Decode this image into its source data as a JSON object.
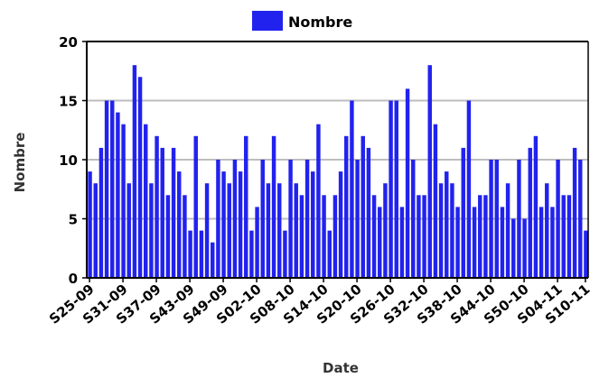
{
  "chart_data": {
    "type": "bar",
    "xlabel": "Date",
    "ylabel": "Nombre",
    "ylim": [
      0,
      20
    ],
    "yticks": [
      0,
      5,
      10,
      15,
      20
    ],
    "grid": true,
    "legend_position": "top-center",
    "series": [
      {
        "name": "Nombre",
        "color": "#2222ee",
        "values": [
          9,
          8,
          11,
          15,
          15,
          14,
          13,
          8,
          18,
          17,
          13,
          8,
          12,
          11,
          7,
          11,
          9,
          7,
          4,
          12,
          4,
          8,
          3,
          10,
          9,
          8,
          10,
          9,
          12,
          4,
          6,
          10,
          8,
          12,
          8,
          4,
          10,
          8,
          7,
          10,
          9,
          13,
          7,
          4,
          7,
          9,
          12,
          15,
          10,
          12,
          11,
          7,
          6,
          8,
          15,
          15,
          6,
          16,
          10,
          7,
          7,
          18,
          13,
          8,
          9,
          8,
          6,
          11,
          15,
          6,
          7,
          7,
          10,
          10,
          6,
          8,
          5,
          10,
          5,
          11,
          12,
          6,
          8,
          6,
          10,
          7,
          7,
          11,
          10,
          4
        ]
      }
    ],
    "x_tick_labels": [
      "S25-09",
      "S31-09",
      "S37-09",
      "S43-09",
      "S49-09",
      "S02-10",
      "S08-10",
      "S14-10",
      "S20-10",
      "S26-10",
      "S32-10",
      "S38-10",
      "S44-10",
      "S50-10",
      "S04-11",
      "S10-11"
    ],
    "x_tick_every": 6
  }
}
